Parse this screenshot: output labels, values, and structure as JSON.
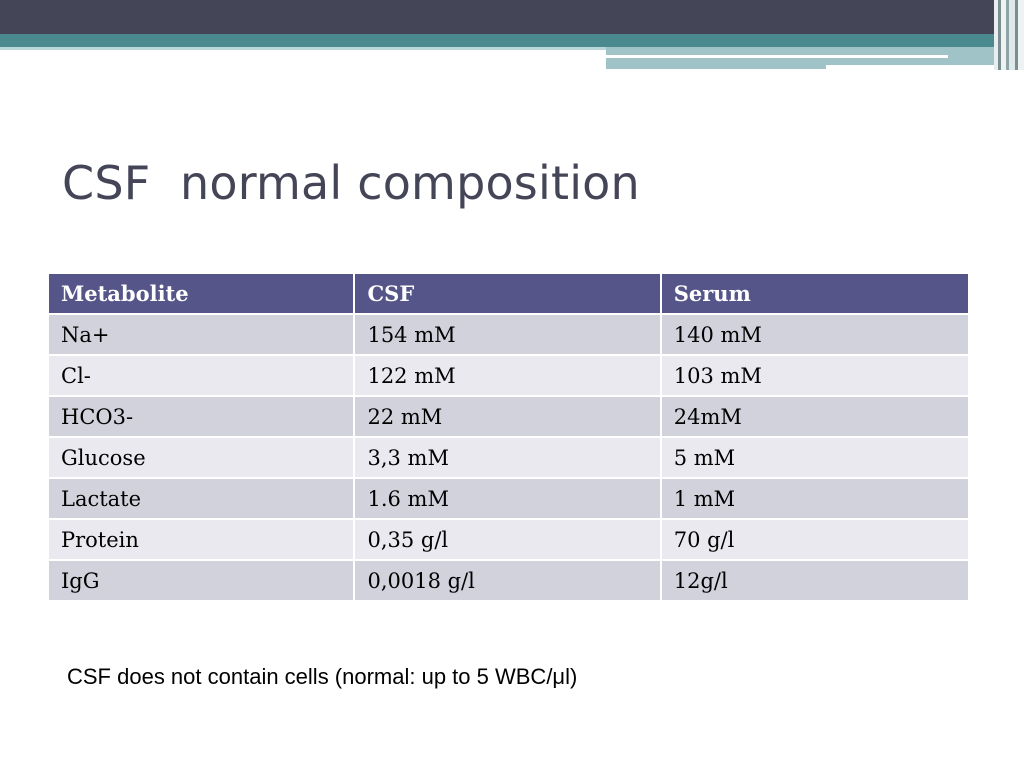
{
  "title": "CSF  normal composition",
  "table": {
    "headers": [
      "Metabolite",
      "CSF",
      "Serum"
    ],
    "rows": [
      [
        "Na+",
        "154 mM",
        "140 mM"
      ],
      [
        "Cl-",
        "122 mM",
        "103 mM"
      ],
      [
        "HCO3-",
        "22 mM",
        "24mM"
      ],
      [
        "Glucose",
        "3,3 mM",
        "5 mM"
      ],
      [
        "Lactate",
        "1.6 mM",
        "1 mM"
      ],
      [
        "Protein",
        "0,35 g/l",
        "70 g/l"
      ],
      [
        "IgG",
        "0,0018 g/l",
        "12g/l"
      ]
    ]
  },
  "note": "CSF does not contain cells (normal: up to 5 WBC/μl)",
  "colors": {
    "header_bg": "#55558a",
    "row_odd": "#d2d2dc",
    "row_even": "#e9e9ef",
    "title": "#454558",
    "band_dark": "#454558",
    "band_teal": "#4a8a8f"
  }
}
